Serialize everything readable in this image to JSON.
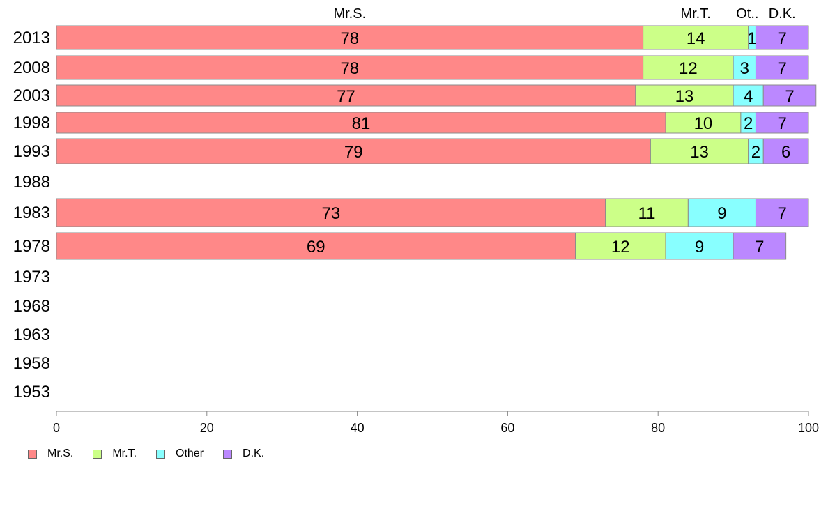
{
  "chart_data": {
    "type": "bar",
    "orientation": "horizontal",
    "stacked": true,
    "categories": [
      "2013",
      "2008",
      "2003",
      "1998",
      "1993",
      "1988",
      "1983",
      "1978",
      "1973",
      "1968",
      "1963",
      "1958",
      "1953"
    ],
    "series": [
      {
        "name": "Mr.S.",
        "header": "Mr.S.",
        "color": "#ff8888",
        "values": [
          78,
          78,
          77,
          81,
          79,
          null,
          73,
          69,
          null,
          null,
          null,
          null,
          null
        ]
      },
      {
        "name": "Mr.T.",
        "header": "Mr.T.",
        "color": "#ccff88",
        "values": [
          14,
          12,
          13,
          10,
          13,
          null,
          11,
          12,
          null,
          null,
          null,
          null,
          null
        ]
      },
      {
        "name": "Other",
        "header": "Ot..",
        "color": "#88ffff",
        "values": [
          1,
          3,
          4,
          2,
          2,
          null,
          9,
          9,
          null,
          null,
          null,
          null,
          null
        ]
      },
      {
        "name": "D.K.",
        "header": "D.K.",
        "color": "#bb88ff",
        "values": [
          7,
          7,
          7,
          7,
          6,
          null,
          7,
          7,
          null,
          null,
          null,
          null,
          null
        ]
      }
    ],
    "xlim": [
      0,
      100
    ],
    "xticks": [
      0,
      20,
      40,
      60,
      80,
      100
    ],
    "legend_position": "bottom-left",
    "grid": false
  }
}
